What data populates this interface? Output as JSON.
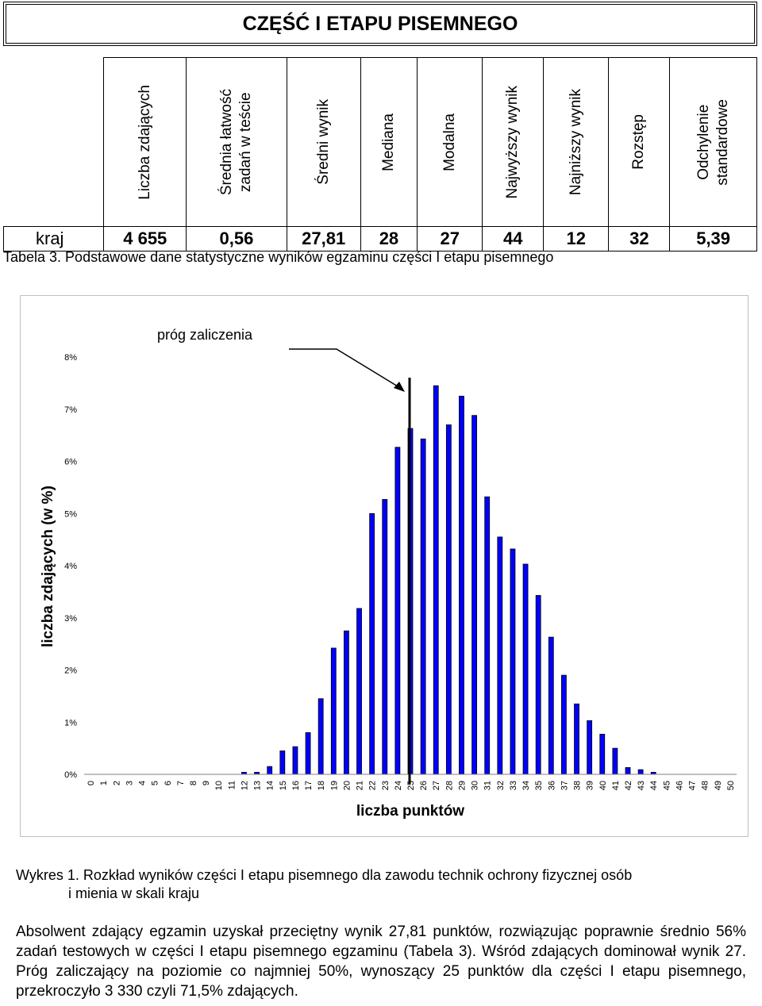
{
  "header": {
    "title": "CZĘŚĆ I ETAPU PISEMNEGO"
  },
  "stats_table": {
    "headers": [
      "Liczba zdających",
      "Średnia łatwość\nzadań w teście",
      "Średni wynik",
      "Mediana",
      "Modalna",
      "Najwyższy wynik",
      "Najniższy wynik",
      "Rozstęp",
      "Odchylenie\nstandardowe"
    ],
    "rows": [
      {
        "region": "kraj",
        "values": [
          "4 655",
          "0,56",
          "27,81",
          "28",
          "27",
          "44",
          "12",
          "32",
          "5,39"
        ]
      }
    ]
  },
  "table_caption": "Tabela 3. Podstawowe dane statystyczne wyników egzaminu części I etapu pisemnego",
  "chart_data": {
    "type": "bar",
    "ylabel": "liczba zdających (w %)",
    "xlabel": "liczba punktów",
    "ylim": [
      0,
      8
    ],
    "yticks": [
      "0%",
      "1%",
      "2%",
      "3%",
      "4%",
      "5%",
      "6%",
      "7%",
      "8%"
    ],
    "categories": [
      "0",
      "1",
      "2",
      "3",
      "4",
      "5",
      "6",
      "7",
      "8",
      "9",
      "10",
      "11",
      "12",
      "13",
      "14",
      "15",
      "16",
      "17",
      "18",
      "19",
      "20",
      "21",
      "22",
      "23",
      "24",
      "25",
      "26",
      "27",
      "28",
      "29",
      "30",
      "31",
      "32",
      "33",
      "34",
      "35",
      "36",
      "37",
      "38",
      "39",
      "40",
      "41",
      "42",
      "43",
      "44",
      "45",
      "46",
      "47",
      "48",
      "49",
      "50"
    ],
    "values": [
      0,
      0,
      0,
      0,
      0,
      0,
      0,
      0,
      0,
      0,
      0,
      0,
      0.04,
      0.04,
      0.15,
      0.45,
      0.53,
      0.8,
      1.45,
      2.42,
      2.75,
      3.18,
      5.0,
      5.27,
      6.27,
      6.63,
      6.43,
      7.45,
      6.7,
      7.25,
      6.88,
      5.32,
      4.55,
      4.32,
      4.03,
      3.43,
      2.63,
      1.9,
      1.35,
      1.03,
      0.77,
      0.5,
      0.13,
      0.09,
      0.04,
      0,
      0,
      0,
      0,
      0,
      0
    ],
    "bar_color": "#0000ff",
    "threshold": {
      "x": 25,
      "label": "próg zaliczenia"
    },
    "grid": false
  },
  "chart_caption": {
    "line1": "Wykres 1. Rozkład wyników części I etapu pisemnego dla zawodu technik ochrony fizycznej osób",
    "line2": "i mienia w skali kraju"
  },
  "summary_paragraph": "Absolwent zdający egzamin uzyskał przeciętny wynik 27,81 punktów, rozwiązując poprawnie średnio 56% zadań testowych w części I etapu pisemnego egzaminu (Tabela 3). Wśród zdających dominował wynik 27. Próg zaliczający na poziomie co najmniej 50%, wynoszący 25 punktów dla części I etapu pisemnego, przekroczyło 3 330 czyli 71,5% zdających."
}
